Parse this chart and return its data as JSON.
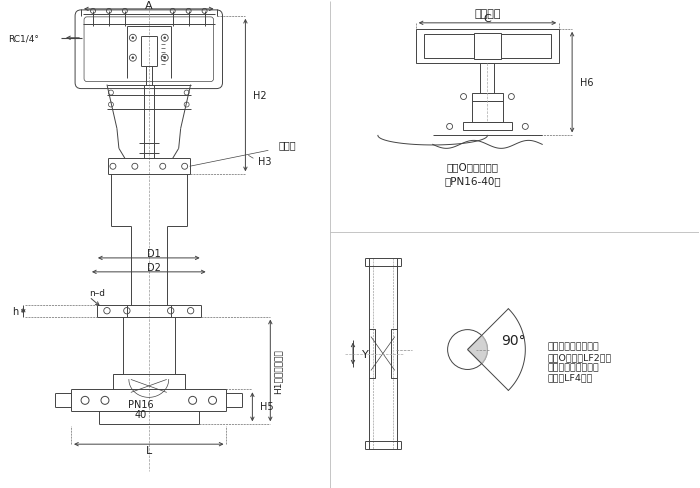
{
  "bg_color": "#ffffff",
  "line_color": "#444444",
  "dim_color": "#444444",
  "text_color": "#222222",
  "figsize": [
    7.0,
    4.89
  ],
  "dpi": 100,
  "label_A": "A",
  "label_C": "C",
  "label_H1": "H1（保温长度）",
  "label_H2": "H2",
  "label_H3": "H3",
  "label_H5": "H5",
  "label_H6": "H6",
  "label_L": "L",
  "label_D1": "D1",
  "label_D2": "D2",
  "label_Y": "Y",
  "label_nd": "n–d",
  "label_h": "h",
  "label_RC": "RC1/4°",
  "label_lianban": "连接板",
  "label_handwheel": "顶式手轮",
  "label_oring": "金属O型圈槽尺寸",
  "label_oring2": "（PN16-40）",
  "label_PN": "PN16",
  "label_40": "40",
  "label_angle": "90°",
  "label_note": "低温调节阀法兰采用\n金属O形圈（LF2）密\n封，可根据用户配铝\n屏圈（LF4）。"
}
